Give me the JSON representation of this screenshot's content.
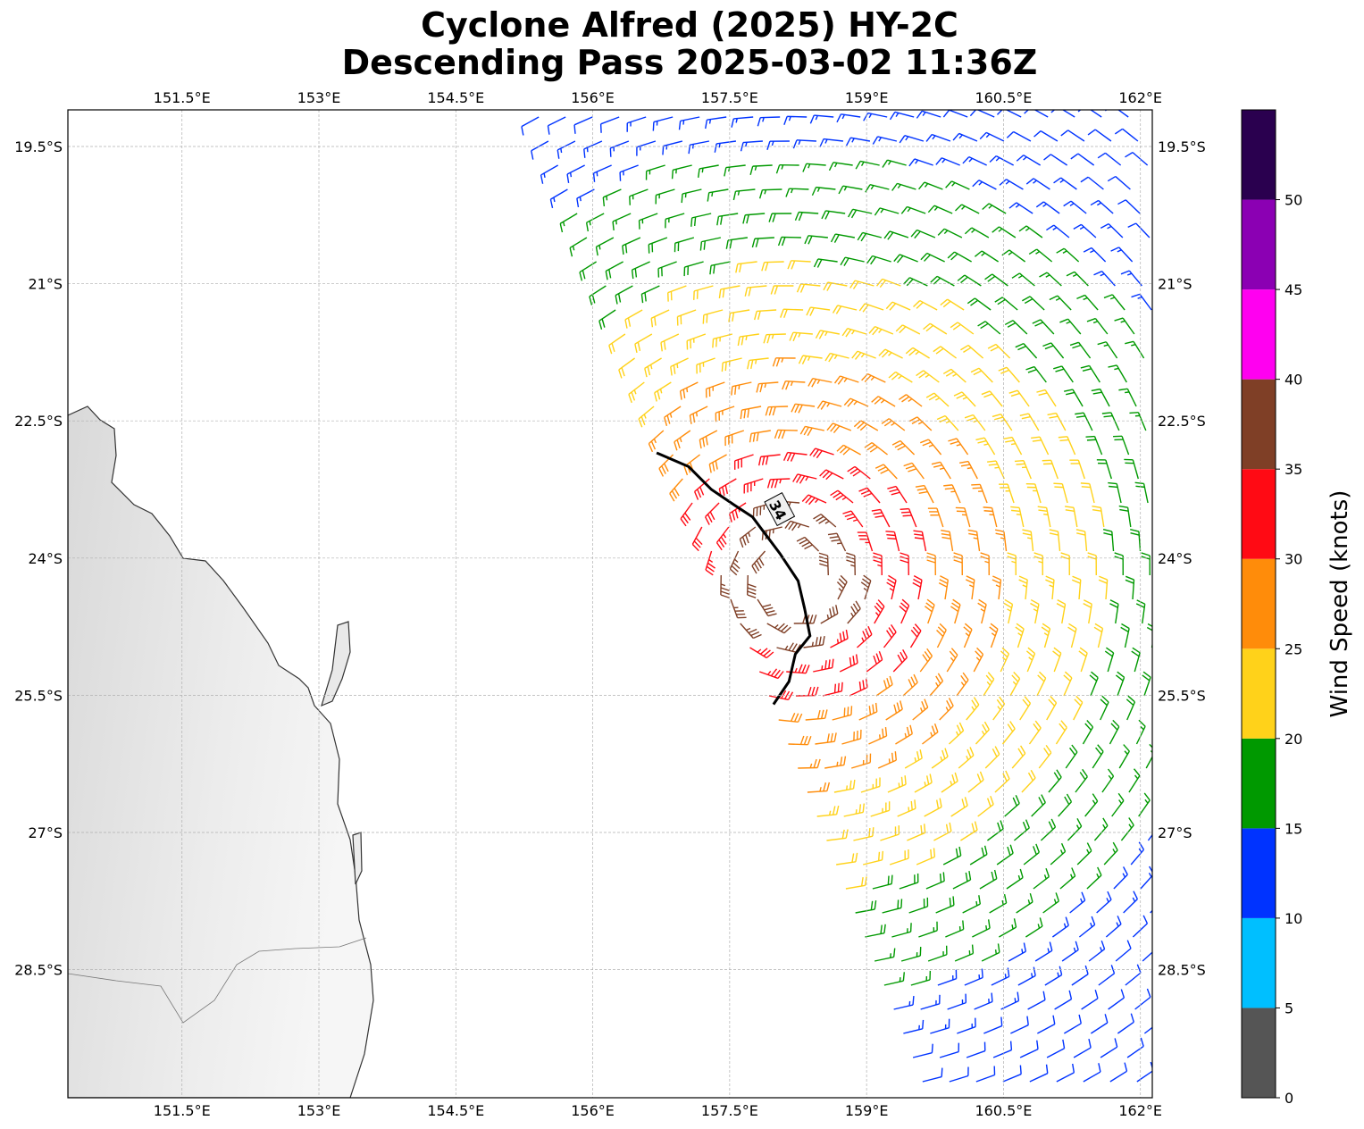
{
  "title": {
    "line1": "Cyclone Alfred (2025) HY-2C",
    "line2": "Descending Pass 2025-03-02 11:36Z"
  },
  "map": {
    "lon_range": [
      149.25,
      161.15
    ],
    "lat_range": [
      -30.3,
      -19.5
    ],
    "lon_ticks": [
      151.5,
      153,
      154.5,
      156,
      157.5,
      159,
      160.5,
      162
    ],
    "lon_tick_labels": [
      "151.5°E",
      "153°E",
      "154.5°E",
      "156°E",
      "157.5°E",
      "159°E",
      "160.5°E",
      "162°E"
    ],
    "lat_ticks": [
      -19.5,
      -21,
      -22.5,
      -24,
      -25.5,
      -27,
      -28.5
    ],
    "lat_tick_labels": [
      "19.5°S",
      "21°S",
      "22.5°S",
      "24°S",
      "25.5°S",
      "27°S",
      "28.5°S"
    ],
    "grid": true,
    "land_shading": "grayscale topography",
    "contour": {
      "value_label": "34",
      "color": "#000000",
      "points": [
        [
          156.7,
          -22.85
        ],
        [
          157.05,
          -23.0
        ],
        [
          157.3,
          -23.25
        ],
        [
          157.55,
          -23.42
        ],
        [
          157.75,
          -23.55
        ],
        [
          157.9,
          -23.75
        ],
        [
          158.05,
          -23.95
        ],
        [
          158.25,
          -24.25
        ],
        [
          158.32,
          -24.55
        ],
        [
          158.38,
          -24.85
        ],
        [
          158.22,
          -25.05
        ],
        [
          158.15,
          -25.35
        ],
        [
          157.98,
          -25.6
        ]
      ]
    },
    "wind_swath": {
      "description_units": "knots",
      "center": [
        158.2,
        -24.2
      ],
      "speed_profile_radius_deg": [
        0,
        0.6,
        1.2,
        2.0,
        3.0,
        4.2,
        5.5
      ],
      "speed_profile_knots": [
        42,
        37,
        32,
        27,
        22,
        17,
        12
      ]
    }
  },
  "colorbar": {
    "label": "Wind Speed (knots)",
    "ticks": [
      0,
      5,
      10,
      15,
      20,
      25,
      30,
      35,
      40,
      45,
      50
    ],
    "colors": [
      "#555555",
      "#00bfff",
      "#0033ff",
      "#009900",
      "#ffd21a",
      "#ff8c0a",
      "#ff0a14",
      "#7f3f26",
      "#ff00f0",
      "#8b00b3",
      "#2a004f"
    ],
    "bounds": [
      0,
      5,
      10,
      15,
      20,
      25,
      30,
      35,
      40,
      45,
      50,
      55
    ]
  }
}
